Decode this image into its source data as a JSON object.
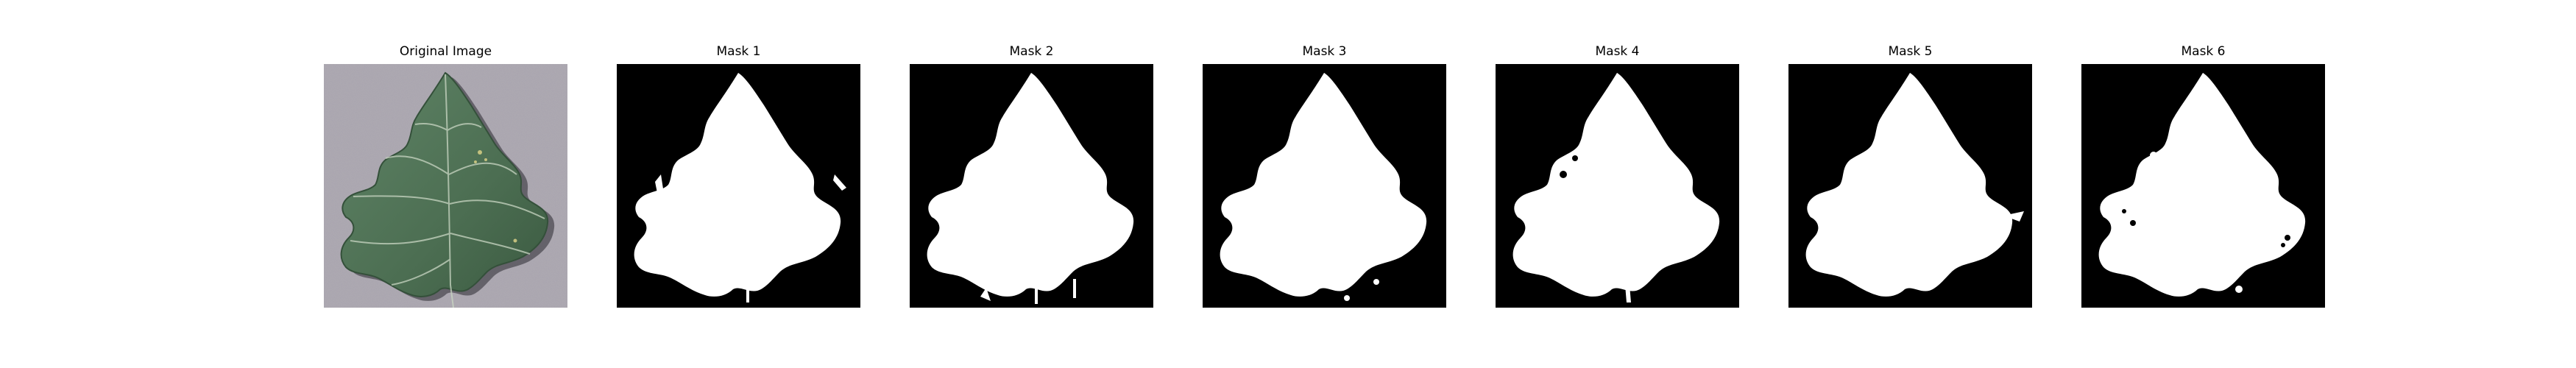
{
  "figure": {
    "panels": [
      {
        "title": "Original Image",
        "kind": "photo",
        "leaf_color": "#4c6e52",
        "background_color": "#a8a3ae"
      },
      {
        "title": "Mask 1",
        "kind": "mask",
        "variant": 1,
        "mask_color": "#ffffff",
        "background_color": "#000000"
      },
      {
        "title": "Mask 2",
        "kind": "mask",
        "variant": 2,
        "mask_color": "#ffffff",
        "background_color": "#000000"
      },
      {
        "title": "Mask 3",
        "kind": "mask",
        "variant": 3,
        "mask_color": "#ffffff",
        "background_color": "#000000"
      },
      {
        "title": "Mask 4",
        "kind": "mask",
        "variant": 4,
        "mask_color": "#ffffff",
        "background_color": "#000000"
      },
      {
        "title": "Mask 5",
        "kind": "mask",
        "variant": 5,
        "mask_color": "#ffffff",
        "background_color": "#000000"
      },
      {
        "title": "Mask 6",
        "kind": "mask",
        "variant": 6,
        "mask_color": "#ffffff",
        "background_color": "#000000"
      }
    ]
  }
}
